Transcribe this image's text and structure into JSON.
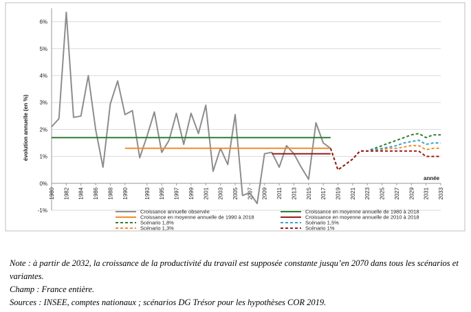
{
  "chart_data": {
    "type": "line",
    "ylabel": "évolution annuelle (en %)",
    "xlabel": "année",
    "ylim": [
      -1,
      6.5
    ],
    "xlim": [
      1980,
      2033
    ],
    "y_ticks": [
      -1,
      0,
      1,
      2,
      3,
      4,
      5,
      6
    ],
    "y_tick_labels": [
      "-1%",
      "0%",
      "1%",
      "2%",
      "3%",
      "4%",
      "5%",
      "6%"
    ],
    "x_tick_labels": [
      "1980",
      "1982",
      "1984",
      "1986",
      "1988",
      "1990",
      "1993",
      "1995",
      "1997",
      "1999",
      "2001",
      "2003",
      "2005",
      "2007",
      "2009",
      "2011",
      "2013",
      "2015",
      "2017",
      "2019",
      "2021",
      "2023",
      "2025",
      "2027",
      "2029",
      "2031",
      "2033"
    ],
    "grid": "horizontal",
    "legend_position": "bottom",
    "series": [
      {
        "name": "Croissance annuelle observée",
        "color": "#8c8c8c",
        "style": "solid",
        "x": [
          1980,
          1981,
          1982,
          1983,
          1984,
          1985,
          1986,
          1987,
          1988,
          1989,
          1990,
          1991,
          1992,
          1993,
          1994,
          1995,
          1996,
          1997,
          1998,
          1999,
          2000,
          2001,
          2002,
          2003,
          2004,
          2005,
          2006,
          2007,
          2008,
          2009,
          2010,
          2011,
          2012,
          2013,
          2014,
          2015,
          2016,
          2017,
          2018
        ],
        "y": [
          2.1,
          2.4,
          6.35,
          2.45,
          2.5,
          4.0,
          2.0,
          0.6,
          2.95,
          3.8,
          2.55,
          2.7,
          0.95,
          1.75,
          2.65,
          1.15,
          1.6,
          2.6,
          1.45,
          2.6,
          1.85,
          2.9,
          0.45,
          1.3,
          0.7,
          2.55,
          -0.45,
          -0.35,
          -0.75,
          1.1,
          1.15,
          0.6,
          1.4,
          1.1,
          0.6,
          0.15,
          2.25,
          1.5,
          1.3
        ]
      },
      {
        "name": "Croissance en moyenne annuelle de 1980 à 2018",
        "color": "#2e7d32",
        "style": "solid",
        "x": [
          1980,
          2018
        ],
        "y": [
          1.7,
          1.7
        ]
      },
      {
        "name": "Croissance en moyenne annuelle de 1990 à 2018",
        "color": "#f28c28",
        "style": "solid",
        "x": [
          1990,
          2018
        ],
        "y": [
          1.3,
          1.3
        ]
      },
      {
        "name": "Croissance en moyenne annuelle de 2010 à 2018",
        "color": "#9b1b1b",
        "style": "solid",
        "x": [
          2010,
          2018
        ],
        "y": [
          1.1,
          1.1
        ]
      },
      {
        "name": "Scénario 1,8%",
        "color": "#2e7d32",
        "style": "dashed",
        "x": [
          2018,
          2019,
          2020,
          2021,
          2022,
          2023,
          2024,
          2025,
          2026,
          2027,
          2028,
          2029,
          2030,
          2031,
          2032,
          2033
        ],
        "y": [
          1.3,
          0.5,
          0.7,
          0.9,
          1.2,
          1.2,
          1.3,
          1.4,
          1.5,
          1.6,
          1.7,
          1.8,
          1.85,
          1.7,
          1.8,
          1.8
        ]
      },
      {
        "name": "Scénario 1,5%",
        "color": "#3aa0d0",
        "style": "dashed",
        "x": [
          2018,
          2019,
          2020,
          2021,
          2022,
          2023,
          2024,
          2025,
          2026,
          2027,
          2028,
          2029,
          2030,
          2031,
          2032,
          2033
        ],
        "y": [
          1.3,
          0.5,
          0.7,
          0.9,
          1.2,
          1.2,
          1.25,
          1.3,
          1.35,
          1.4,
          1.5,
          1.55,
          1.6,
          1.45,
          1.5,
          1.5
        ]
      },
      {
        "name": "Scénario 1,3%",
        "color": "#f28c28",
        "style": "dashed",
        "x": [
          2018,
          2019,
          2020,
          2021,
          2022,
          2023,
          2024,
          2025,
          2026,
          2027,
          2028,
          2029,
          2030,
          2031,
          2032,
          2033
        ],
        "y": [
          1.3,
          0.5,
          0.7,
          0.9,
          1.2,
          1.2,
          1.2,
          1.25,
          1.3,
          1.3,
          1.35,
          1.4,
          1.4,
          1.25,
          1.3,
          1.3
        ]
      },
      {
        "name": "Scénario 1%",
        "color": "#9b1b1b",
        "style": "dashed",
        "x": [
          2018,
          2019,
          2020,
          2021,
          2022,
          2023,
          2024,
          2025,
          2026,
          2027,
          2028,
          2029,
          2030,
          2031,
          2032,
          2033
        ],
        "y": [
          1.3,
          0.5,
          0.7,
          0.9,
          1.2,
          1.2,
          1.2,
          1.2,
          1.2,
          1.2,
          1.2,
          1.2,
          1.2,
          1.0,
          1.0,
          1.0
        ]
      }
    ]
  },
  "notes": {
    "note": "Note : à partir de 2032, la croissance de la productivité du travail est supposée constante jusqu’en 2070 dans tous les scénarios et variantes.",
    "champ": "Champ : France entière.",
    "sources": "Sources : INSEE, comptes nationaux ; scénarios DG Trésor pour les hypothèses COR 2019."
  }
}
